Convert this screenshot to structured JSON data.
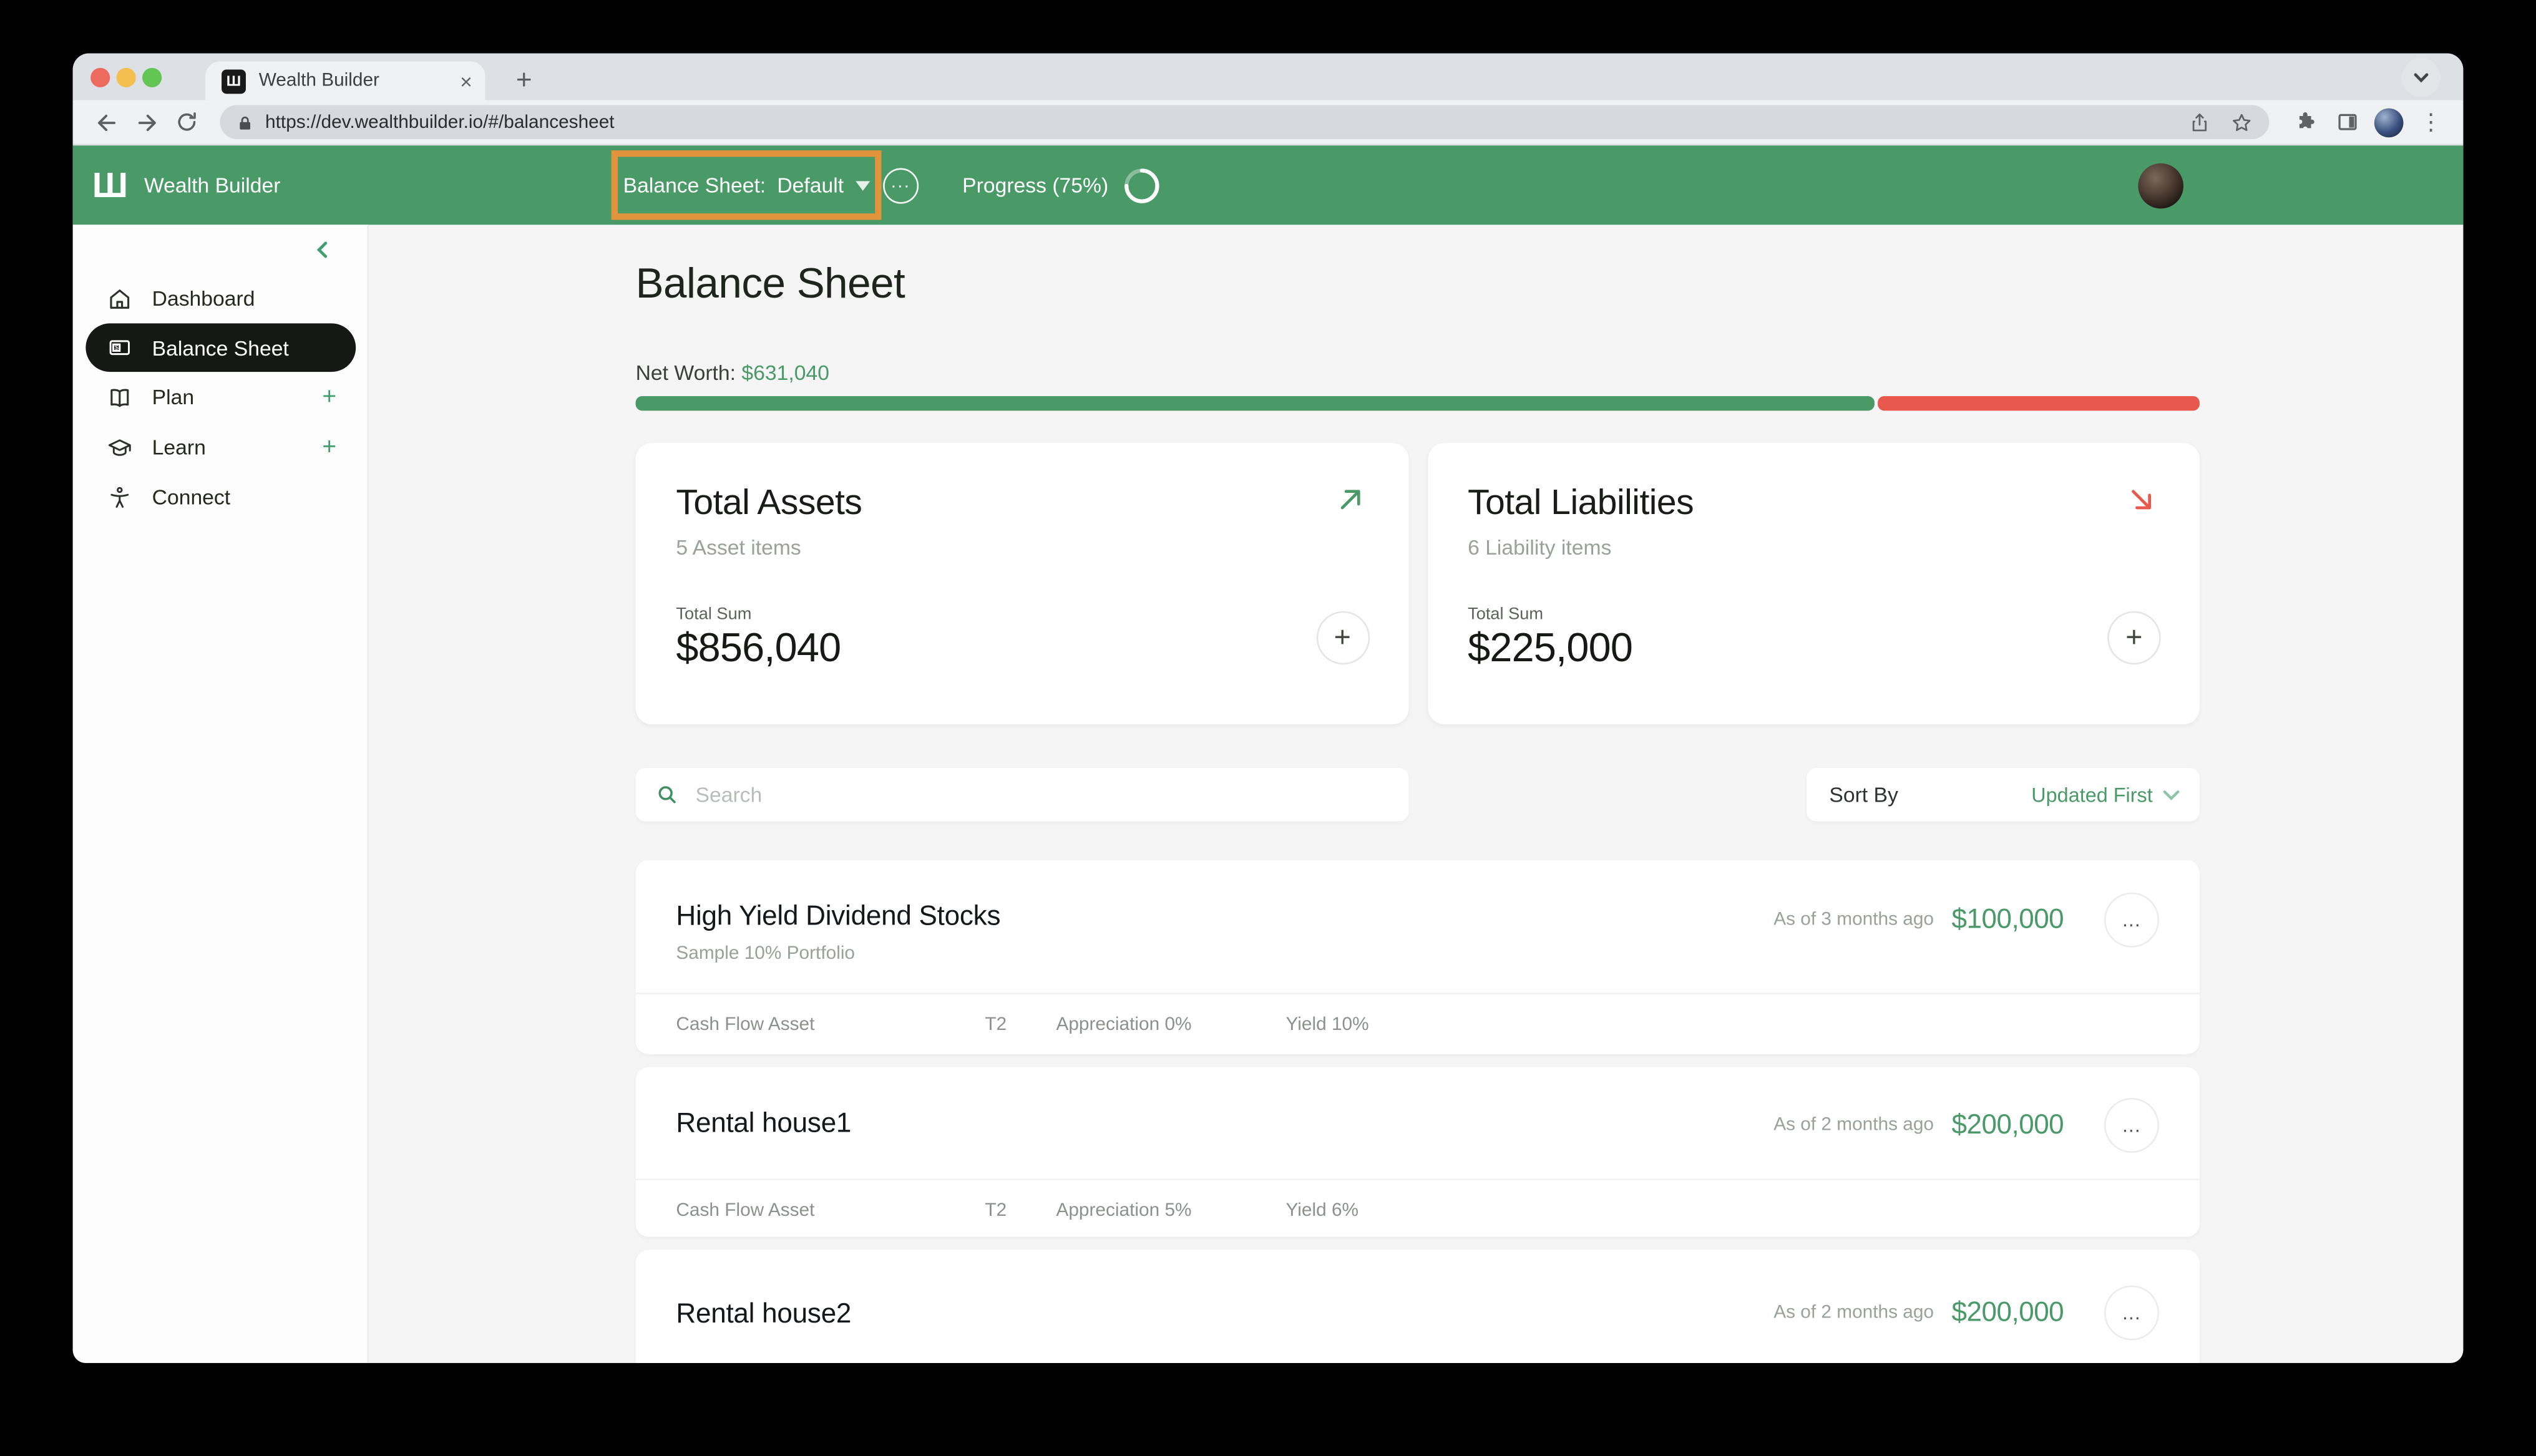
{
  "browser": {
    "tab_title": "Wealth Builder",
    "favicon_glyph": "Ш",
    "new_tab_label": "+",
    "close_label": "×",
    "url": "https://dev.wealthbuilder.io/#/balancesheet",
    "kebab_glyph": "⋮"
  },
  "navbar": {
    "logo_glyph": "Ш",
    "brand": "Wealth Builder",
    "sheet_selector": {
      "label": "Balance Sheet:",
      "value": "Default"
    },
    "ellipsis_glyph": "...",
    "progress_label": "Progress (75%)",
    "progress_percent": 75,
    "highlight_color": "#e2943c"
  },
  "sidebar": {
    "items": [
      {
        "label": "Dashboard"
      },
      {
        "label": "Balance Sheet"
      },
      {
        "label": "Plan",
        "action": "+"
      },
      {
        "label": "Learn",
        "action": "+"
      },
      {
        "label": "Connect"
      }
    ]
  },
  "main": {
    "title": "Balance Sheet",
    "net_worth_label": "Net Worth:",
    "net_worth_value": "$631,040",
    "net_worth_bar": {
      "assets_pct": 79.2,
      "liabilities_pct": 20.8,
      "assets_color": "#4a9a68",
      "liabilities_color": "#e8584c"
    },
    "summary_cards": [
      {
        "title": "Total Assets",
        "subtitle": "5 Asset items",
        "sum_label": "Total Sum",
        "sum": "$856,040",
        "trend": "up",
        "add_label": "+"
      },
      {
        "title": "Total Liabilities",
        "subtitle": "6 Liability items",
        "sum_label": "Total Sum",
        "sum": "$225,000",
        "trend": "down",
        "add_label": "+"
      }
    ],
    "search_placeholder": "Search",
    "sort": {
      "label": "Sort By",
      "value": "Updated First"
    },
    "items": [
      {
        "name": "High Yield Dividend Stocks",
        "subtitle": "Sample 10% Portfolio",
        "as_of": "As of 3 months ago",
        "value": "$100,000",
        "menu_glyph": "...",
        "meta": [
          "Cash Flow Asset",
          "T2",
          "Appreciation 0%",
          "Yield 10%"
        ]
      },
      {
        "name": "Rental house1",
        "subtitle": "",
        "as_of": "As of 2 months ago",
        "value": "$200,000",
        "menu_glyph": "...",
        "meta": [
          "Cash Flow Asset",
          "T2",
          "Appreciation 5%",
          "Yield 6%"
        ]
      },
      {
        "name": "Rental house2",
        "subtitle": "",
        "as_of": "As of 2 months ago",
        "value": "$200,000",
        "menu_glyph": "...",
        "meta": []
      }
    ]
  }
}
